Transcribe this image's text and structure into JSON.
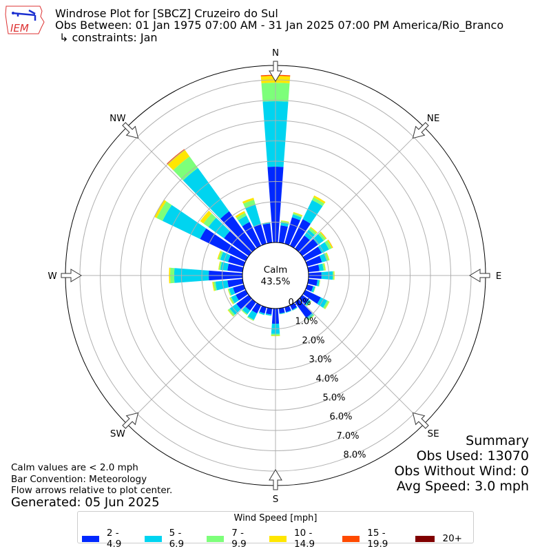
{
  "header": {
    "title": "Windrose Plot for [SBCZ] Cruzeiro do Sul",
    "obs_between": "Obs Between: 01 Jan 1975 07:00 AM - 31 Jan 2025 07:00 PM America/Rio_Branco",
    "constraints": "↳ constraints: Jan",
    "logo_text": "IEM"
  },
  "notes": {
    "calm_def": "Calm values are < 2.0 mph",
    "convention": "Bar Convention: Meteorology",
    "arrows": "Flow arrows relative to plot center.",
    "generated": "Generated: 05 Jun 2025"
  },
  "summary": {
    "title": "Summary",
    "obs_used": "Obs Used: 13070",
    "obs_without_wind": "Obs Without Wind: 0",
    "avg_speed": "Avg Speed: 3.0 mph"
  },
  "chart_data": {
    "type": "windrose",
    "calm_label": "Calm",
    "calm_value": "43.5%",
    "compass_labels": [
      "N",
      "NE",
      "E",
      "SE",
      "S",
      "SW",
      "W",
      "NW"
    ],
    "radial_ticks": [
      "0.0%",
      "1.0%",
      "2.0%",
      "3.0%",
      "4.0%",
      "5.0%",
      "6.0%",
      "7.0%",
      "8.0%"
    ],
    "legend_title": "Wind Speed [mph]",
    "speed_bins": [
      "2 - 4.9",
      "5 - 6.9",
      "7 - 9.9",
      "10 - 14.9",
      "15 - 19.9",
      "20+"
    ],
    "colors": [
      "#0028ff",
      "#00d4f0",
      "#7dff7a",
      "#ffe600",
      "#ff4a00",
      "#800000"
    ],
    "directions_deg": [
      0,
      10,
      20,
      30,
      40,
      50,
      60,
      70,
      80,
      90,
      100,
      110,
      120,
      130,
      140,
      150,
      160,
      170,
      180,
      190,
      200,
      210,
      220,
      230,
      240,
      250,
      260,
      270,
      280,
      290,
      300,
      310,
      320,
      330,
      340,
      350
    ],
    "values_pct": [
      [
        3.73,
        3.22,
        0.91,
        0.34,
        0.05,
        0
      ],
      [
        0.85,
        0.15,
        0.07,
        0.03,
        0,
        0
      ],
      [
        1.35,
        0.15,
        0.08,
        0.04,
        0,
        0
      ],
      [
        1.45,
        1.05,
        0.15,
        0.1,
        0,
        0
      ],
      [
        0.8,
        0.35,
        0.13,
        0.05,
        0,
        0
      ],
      [
        0.95,
        0.35,
        0.12,
        0.05,
        0.01,
        0
      ],
      [
        0.9,
        0.4,
        0.15,
        0.06,
        0.01,
        0
      ],
      [
        0.75,
        0.25,
        0.1,
        0.04,
        0,
        0
      ],
      [
        0.55,
        0.2,
        0.08,
        0.03,
        0,
        0
      ],
      [
        0.64,
        0.55,
        0.06,
        0.03,
        0,
        0
      ],
      [
        0.45,
        0.1,
        0.03,
        0.01,
        0,
        0
      ],
      [
        0.3,
        0.1,
        0.02,
        0.01,
        0,
        0
      ],
      [
        0.85,
        0.35,
        0.1,
        0.03,
        0,
        0
      ],
      [
        0.4,
        0.1,
        0.04,
        0.01,
        0,
        0
      ],
      [
        0.95,
        0.1,
        0.06,
        0.01,
        0,
        0
      ],
      [
        0.25,
        0.04,
        0.01,
        0,
        0,
        0
      ],
      [
        0.25,
        0.03,
        0,
        0,
        0,
        0
      ],
      [
        0.25,
        0.03,
        0.01,
        0,
        0,
        0
      ],
      [
        0.75,
        0.5,
        0.08,
        0.03,
        0,
        0
      ],
      [
        0.3,
        0.06,
        0.01,
        0,
        0,
        0
      ],
      [
        0.32,
        0.07,
        0.01,
        0,
        0,
        0
      ],
      [
        0.45,
        0.35,
        0.05,
        0.01,
        0,
        0
      ],
      [
        0.5,
        0.22,
        0.05,
        0.01,
        0,
        0
      ],
      [
        0.75,
        0.4,
        0.1,
        0.03,
        0,
        0
      ],
      [
        0.55,
        0.25,
        0.07,
        0.03,
        0,
        0
      ],
      [
        0.55,
        0.2,
        0.05,
        0.02,
        0,
        0
      ],
      [
        0.75,
        0.6,
        0.1,
        0.05,
        0,
        0
      ],
      [
        1.66,
        1.7,
        0.2,
        0.06,
        0,
        0
      ],
      [
        0.75,
        0.35,
        0.07,
        0.03,
        0,
        0
      ],
      [
        0.8,
        0.4,
        0.1,
        0.05,
        0,
        0
      ],
      [
        2.5,
        2.05,
        0.32,
        0.13,
        0,
        0
      ],
      [
        1.5,
        0.95,
        0.3,
        0.2,
        0,
        0
      ],
      [
        2.27,
        2.63,
        0.7,
        0.4,
        0.05,
        0
      ],
      [
        1.3,
        0.35,
        0.15,
        0.1,
        0,
        0
      ],
      [
        1.0,
        1.0,
        0.25,
        0.1,
        0,
        0
      ],
      [
        0.95,
        0.05,
        0.02,
        0,
        0,
        0
      ]
    ],
    "grid": true,
    "legend_placement": "bottom"
  }
}
